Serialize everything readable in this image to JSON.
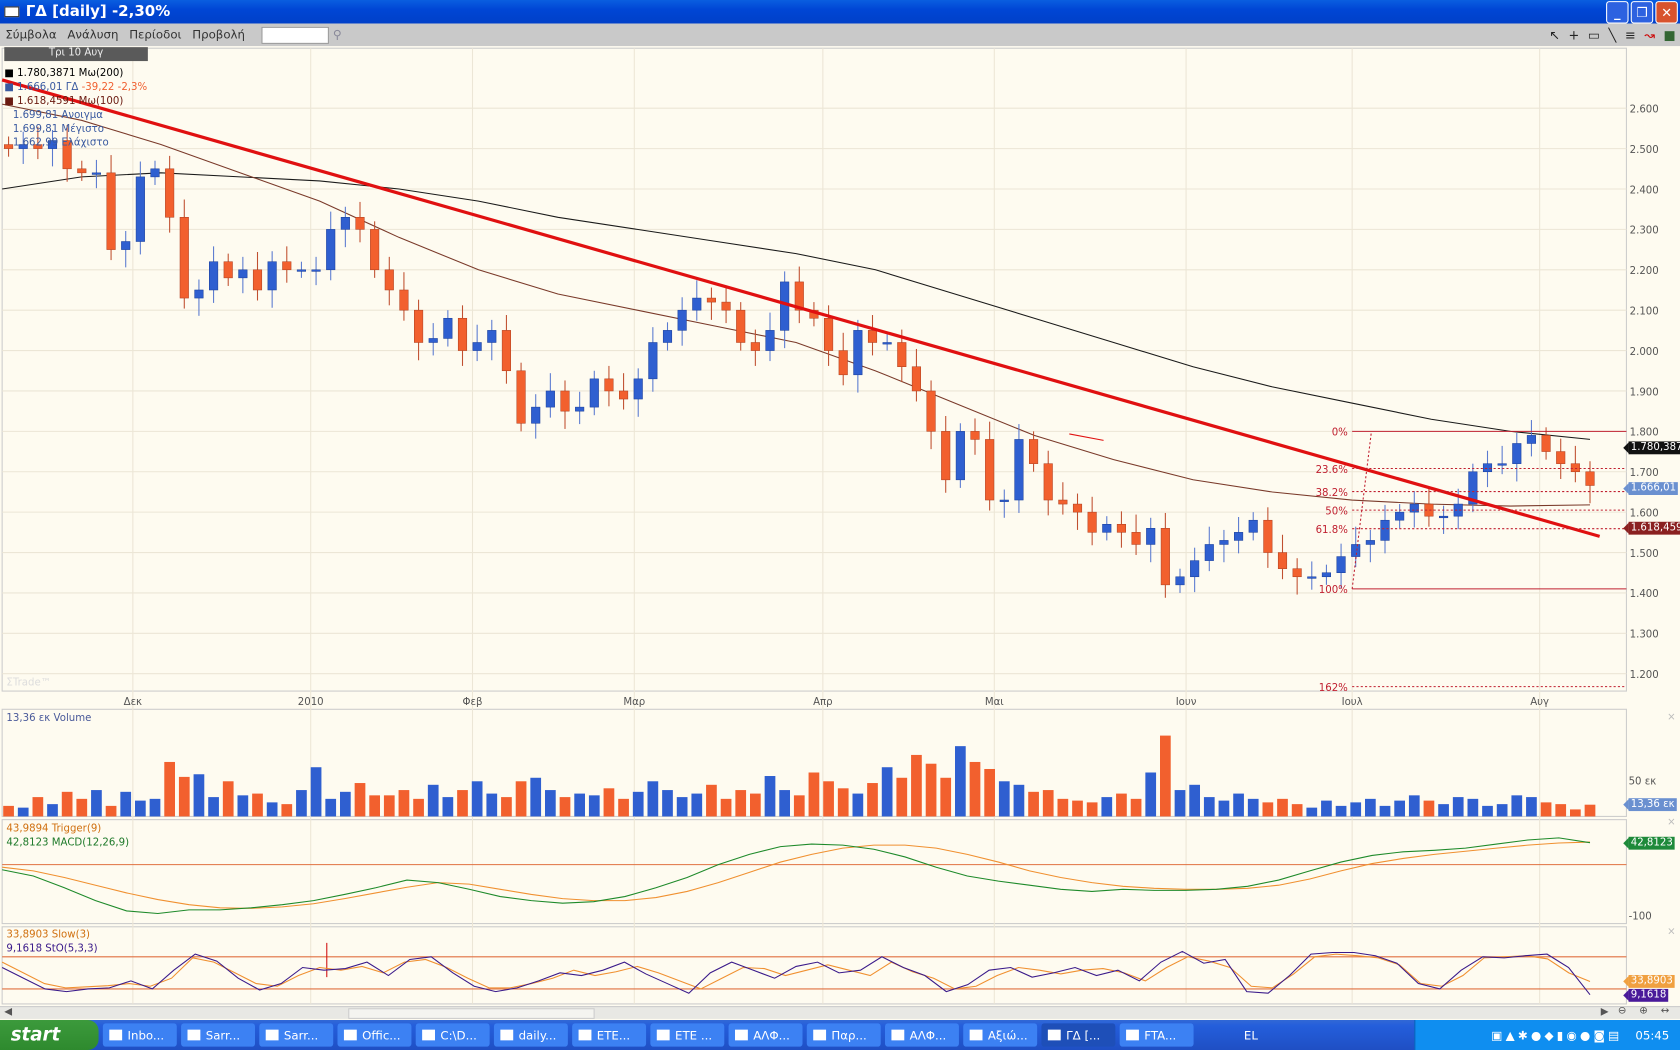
{
  "window": {
    "title": "ΓΔ [daily] -2,30%",
    "minimize": "_",
    "restore": "❐",
    "close": "✕"
  },
  "menu": {
    "items": [
      "Σύμβολα",
      "Ανάλυση",
      "Περίοδοι",
      "Προβολή"
    ],
    "search_value": ""
  },
  "toolbar": {
    "icons": [
      "cursor-icon",
      "crosshair-icon",
      "box-icon",
      "line-icon",
      "hlines-icon",
      "chart-icon",
      "save-icon"
    ]
  },
  "legend": {
    "date": "Τρι 10 Αυγ",
    "ma200": "1.780,3871 Μω(200)",
    "symbol": "1.666,01 ΓΔ",
    "change": "-39,22 -2,3%",
    "ma100": "1.618,4591 Μω(100)",
    "open": "1.699,81 Ανοιγμα",
    "high": "1.699,81 Μέγιστο",
    "low": "1.662,99 Ελάχιστο",
    "watermark": "ΣTrade™"
  },
  "colors": {
    "up": "#2f5fd0",
    "down": "#f2602e",
    "ma200": "#1a1a1a",
    "ma100": "#7a3a2a",
    "trend": "#e01010",
    "fib": "#c02030",
    "macd": "#1e8a2a",
    "trigger": "#f09030",
    "stoch": "#3a1a8a",
    "slow": "#f09030",
    "bg": "#fefbf0"
  },
  "axis": {
    "price_ticks": [
      "2.600",
      "2.500",
      "2.400",
      "2.300",
      "2.200",
      "2.100",
      "2.000",
      "1.900",
      "1.800",
      "1.700",
      "1.600",
      "1.500",
      "1.400",
      "1.300",
      "1.200"
    ],
    "months": [
      "Δεκ",
      "2010",
      "Φεβ",
      "Μαρ",
      "Απρ",
      "Μαι",
      "Ιουν",
      "Ιουλ",
      "Αυγ"
    ],
    "volume_tick": "50 εκ",
    "macd_tick": "-100"
  },
  "badges": {
    "ma200": "1.780,387",
    "price": "1.666,01",
    "ma100": "1.618,459",
    "volume": "13,36 εκ",
    "macd": "42,8123",
    "slow": "33,8903",
    "stoch": "9,1618"
  },
  "fib": {
    "levels": [
      {
        "label": "0%",
        "value": 1.8
      },
      {
        "label": "23.6%",
        "value": 1.708
      },
      {
        "label": "38.2%",
        "value": 1.651
      },
      {
        "label": "50%",
        "value": 1.605
      },
      {
        "label": "61.8%",
        "value": 1.559
      },
      {
        "label": "100%",
        "value": 1.41
      },
      {
        "label": "162%",
        "value": 1.168
      }
    ]
  },
  "panels": {
    "volume": "13,36 εκ Volume",
    "trigger": "43,9894 Trigger(9)",
    "macd": "42,8123 MACD(12,26,9)",
    "slow": "33,8903 Slow(3)",
    "stoch": "9,1618 StO(5,3,3)"
  },
  "chart_data": {
    "type": "candlestick",
    "close": [
      2.5,
      2.51,
      2.5,
      2.52,
      2.45,
      2.44,
      2.44,
      2.25,
      2.27,
      2.43,
      2.45,
      2.33,
      2.13,
      2.15,
      2.22,
      2.18,
      2.2,
      2.15,
      2.22,
      2.2,
      2.2,
      2.2,
      2.3,
      2.33,
      2.3,
      2.2,
      2.15,
      2.1,
      2.02,
      2.03,
      2.08,
      2.0,
      2.02,
      2.05,
      1.95,
      1.82,
      1.86,
      1.9,
      1.85,
      1.86,
      1.93,
      1.9,
      1.88,
      1.93,
      2.02,
      2.05,
      2.1,
      2.13,
      2.12,
      2.1,
      2.02,
      2.0,
      2.05,
      2.17,
      2.1,
      2.08,
      2.0,
      1.94,
      2.05,
      2.02,
      2.02,
      1.96,
      1.9,
      1.8,
      1.68,
      1.8,
      1.78,
      1.63,
      1.63,
      1.78,
      1.72,
      1.63,
      1.62,
      1.6,
      1.55,
      1.57,
      1.55,
      1.52,
      1.56,
      1.42,
      1.44,
      1.48,
      1.52,
      1.53,
      1.55,
      1.58,
      1.5,
      1.46,
      1.44,
      1.44,
      1.45,
      1.49,
      1.52,
      1.53,
      1.58,
      1.6,
      1.62,
      1.59,
      1.59,
      1.62,
      1.7,
      1.72,
      1.72,
      1.77,
      1.79,
      1.75,
      1.72,
      1.7,
      1.666
    ],
    "ma200": [
      2.4,
      2.43,
      2.44,
      2.43,
      2.42,
      2.4,
      2.37,
      2.33,
      2.3,
      2.27,
      2.24,
      2.2,
      2.14,
      2.08,
      2.02,
      1.96,
      1.91,
      1.87,
      1.83,
      1.8,
      1.78
    ],
    "ma100": [
      2.61,
      2.57,
      2.51,
      2.44,
      2.37,
      2.28,
      2.2,
      2.14,
      2.1,
      2.06,
      2.02,
      1.95,
      1.87,
      1.79,
      1.73,
      1.68,
      1.65,
      1.63,
      1.62,
      1.615,
      1.618
    ],
    "trendline": [
      2.67,
      1.54
    ],
    "ylim": [
      1.15,
      2.72
    ],
    "volume": [
      12,
      10,
      22,
      14,
      28,
      20,
      30,
      12,
      28,
      18,
      20,
      62,
      45,
      48,
      22,
      40,
      24,
      26,
      16,
      14,
      30,
      56,
      20,
      28,
      38,
      24,
      24,
      30,
      20,
      36,
      22,
      30,
      40,
      26,
      22,
      40,
      44,
      30,
      22,
      26,
      24,
      32,
      20,
      28,
      40,
      30,
      22,
      26,
      36,
      20,
      30,
      26,
      46,
      30,
      24,
      50,
      40,
      32,
      26,
      38,
      56,
      44,
      70,
      60,
      44,
      80,
      62,
      54,
      40,
      36,
      28,
      30,
      20,
      18,
      16,
      22,
      26,
      20,
      50,
      92,
      30,
      36,
      22,
      18,
      26,
      20,
      16,
      20,
      14,
      10,
      18,
      12,
      16,
      20,
      12,
      18,
      24,
      18,
      14,
      22,
      20,
      12,
      14,
      24,
      22,
      16,
      14,
      8,
      13.36
    ],
    "trigger": [
      -5,
      -12,
      -25,
      -40,
      -55,
      -68,
      -78,
      -84,
      -85,
      -82,
      -76,
      -66,
      -55,
      -44,
      -35,
      -38,
      -48,
      -58,
      -66,
      -70,
      -70,
      -64,
      -52,
      -35,
      -15,
      5,
      20,
      32,
      38,
      38,
      32,
      20,
      5,
      -12,
      -25,
      -35,
      -42,
      -46,
      -48,
      -48,
      -46,
      -40,
      -28,
      -12,
      2,
      12,
      20,
      26,
      32,
      38,
      42,
      44
    ],
    "macd": [
      -10,
      -22,
      -45,
      -70,
      -90,
      -95,
      -88,
      -88,
      -84,
      -78,
      -70,
      -58,
      -45,
      -30,
      -35,
      -48,
      -62,
      -70,
      -75,
      -72,
      -62,
      -45,
      -25,
      0,
      20,
      35,
      40,
      38,
      30,
      15,
      -5,
      -22,
      -32,
      -40,
      -48,
      -52,
      -48,
      -50,
      -50,
      -48,
      -42,
      -30,
      -12,
      5,
      18,
      25,
      28,
      32,
      40,
      48,
      52,
      42.81
    ],
    "slow": [
      70,
      50,
      30,
      22,
      24,
      26,
      30,
      25,
      40,
      78,
      70,
      50,
      30,
      25,
      45,
      60,
      55,
      62,
      50,
      70,
      75,
      60,
      40,
      22,
      22,
      30,
      40,
      55,
      45,
      52,
      62,
      50,
      35,
      20,
      40,
      60,
      58,
      45,
      55,
      65,
      55,
      45,
      70,
      52,
      40,
      20,
      25,
      45,
      60,
      55,
      48,
      55,
      58,
      50,
      35,
      60,
      80,
      72,
      60,
      25,
      22,
      48,
      80,
      85,
      82,
      78,
      65,
      30,
      25,
      45,
      78,
      80,
      82,
      76,
      50,
      33.89
    ],
    "stoch": [
      60,
      40,
      20,
      15,
      20,
      22,
      35,
      20,
      55,
      85,
      72,
      40,
      18,
      30,
      60,
      55,
      58,
      70,
      45,
      75,
      80,
      50,
      25,
      15,
      22,
      35,
      50,
      45,
      55,
      70,
      48,
      30,
      12,
      50,
      70,
      55,
      40,
      62,
      70,
      50,
      55,
      80,
      60,
      45,
      15,
      28,
      55,
      60,
      42,
      50,
      60,
      45,
      55,
      35,
      70,
      90,
      68,
      75,
      15,
      12,
      45,
      85,
      88,
      88,
      82,
      68,
      30,
      20,
      55,
      80,
      78,
      82,
      85,
      60,
      9.16
    ]
  },
  "taskbar": {
    "start": "start",
    "items": [
      "Inbo...",
      "Sarr...",
      "Sarr...",
      "Offic...",
      "C:\\D...",
      "daily...",
      "ETE...",
      "ETE ...",
      "ΑΛΦ...",
      "Παρ...",
      "ΑΛΦ...",
      "Αξιώ...",
      "ΓΔ [...",
      "FTA..."
    ],
    "active": 12,
    "lang": "EL",
    "clock": "05:45"
  }
}
